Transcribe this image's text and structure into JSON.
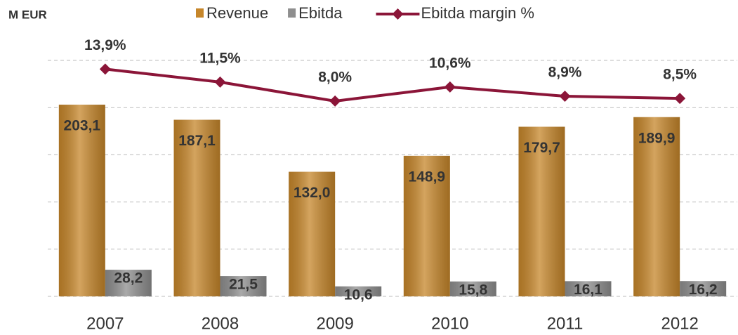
{
  "chart_data": {
    "type": "bar-line",
    "unit_label": "M  EUR",
    "categories": [
      "2007",
      "2008",
      "2009",
      "2010",
      "2011",
      "2012"
    ],
    "series": [
      {
        "name": "Revenue",
        "type": "bar",
        "color": "#c6862a",
        "values": [
          203.1,
          187.1,
          132.0,
          148.9,
          179.7,
          189.9
        ],
        "value_labels": [
          "203,1",
          "187,1",
          "132,0",
          "148,9",
          "179,7",
          "189,9"
        ]
      },
      {
        "name": "Ebitda",
        "type": "bar",
        "color": "#8e8e8e",
        "values": [
          28.2,
          21.5,
          10.6,
          15.8,
          16.1,
          16.2
        ],
        "value_labels": [
          "28,2",
          "21,5",
          "10,6",
          "15,8",
          "16,1",
          "16,2"
        ]
      },
      {
        "name": "Ebitda margin %",
        "type": "line",
        "axis": "y2",
        "color": "#8b1538",
        "values": [
          13.9,
          11.5,
          8.0,
          10.6,
          8.9,
          8.5
        ],
        "value_labels": [
          "13,9%",
          "11,5%",
          "8,0%",
          "10,6%",
          "8,9%",
          "8,5%"
        ]
      }
    ],
    "ylim": [
      0,
      250
    ],
    "yticks": [
      0,
      50,
      100,
      150,
      200,
      250
    ],
    "y2lim": [
      -28,
      15.5
    ],
    "grid": true
  }
}
